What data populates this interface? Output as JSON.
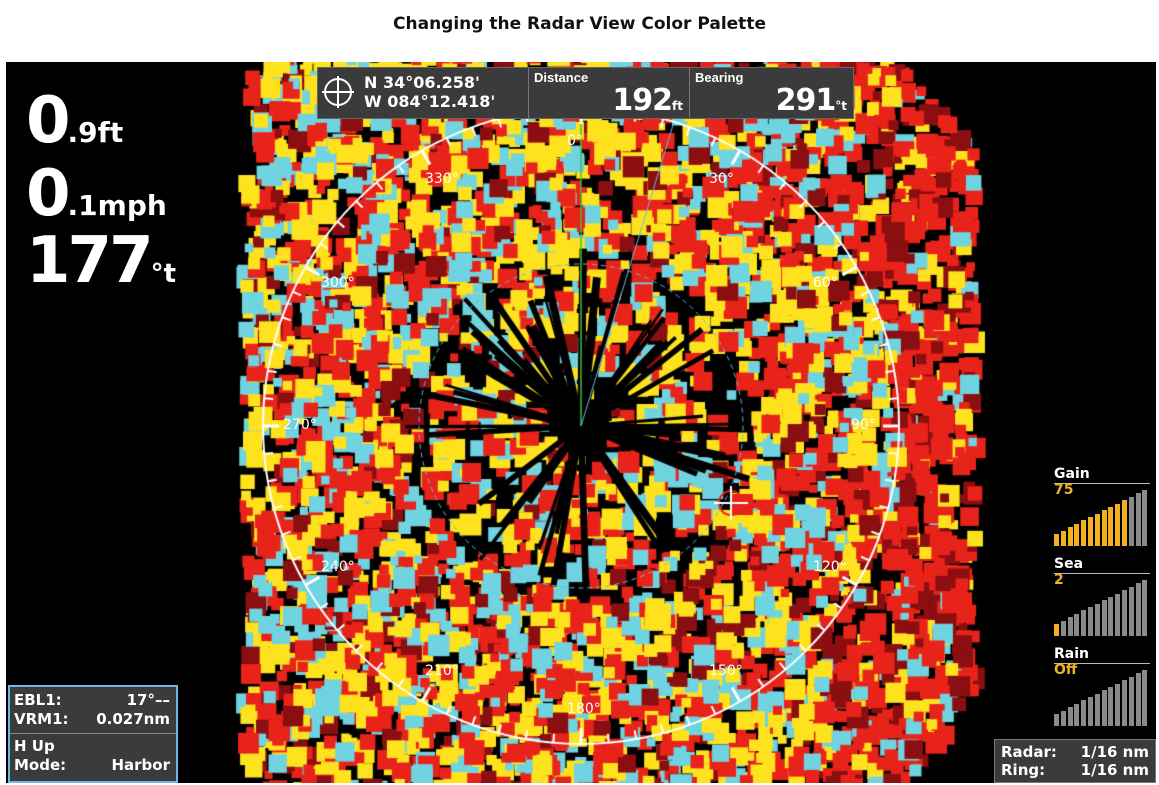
{
  "document_title": "Changing the Radar View Color Palette",
  "readouts": {
    "depth_value": "0",
    "depth_unit": ".9ft",
    "speed_value": "0",
    "speed_unit": ".1mph",
    "heading_value": "177",
    "heading_unit": "°t"
  },
  "position": {
    "lat": "N 34°06.258'",
    "lon": "W 084°12.418'"
  },
  "distance": {
    "label": "Distance",
    "value": "192",
    "unit": "ft"
  },
  "bearing": {
    "label": "Bearing",
    "value": "291",
    "unit": "°t"
  },
  "compass_labels": [
    "0°",
    "30°",
    "60°",
    "90°",
    "120°",
    "150°",
    "180°",
    "210°",
    "240°",
    "270°",
    "300°",
    "330°"
  ],
  "info": {
    "ebl_label": "EBL1:",
    "ebl_value": "17°––",
    "vrm_label": "VRM1:",
    "vrm_value": "0.027nm",
    "orientation": "H Up",
    "mode_label": "Mode:",
    "mode_value": "Harbor"
  },
  "range": {
    "radar_label": "Radar:",
    "radar_value": "1/16 nm",
    "ring_label": "Ring:",
    "ring_value": "1/16 nm"
  },
  "controls": {
    "gain": {
      "label": "Gain",
      "value": "75",
      "level": 0.75
    },
    "sea": {
      "label": "Sea",
      "value": "2",
      "level": 0.05
    },
    "rain": {
      "label": "Rain",
      "value": "Off",
      "level": 0
    }
  },
  "colors": {
    "accent": "#f0b020",
    "panel": "#3b3b3b",
    "ring": "#6ab8e8",
    "echo_strong": "#e8231a",
    "echo_mid": "#ffe21e",
    "echo_weak": "#6fd3e0"
  }
}
